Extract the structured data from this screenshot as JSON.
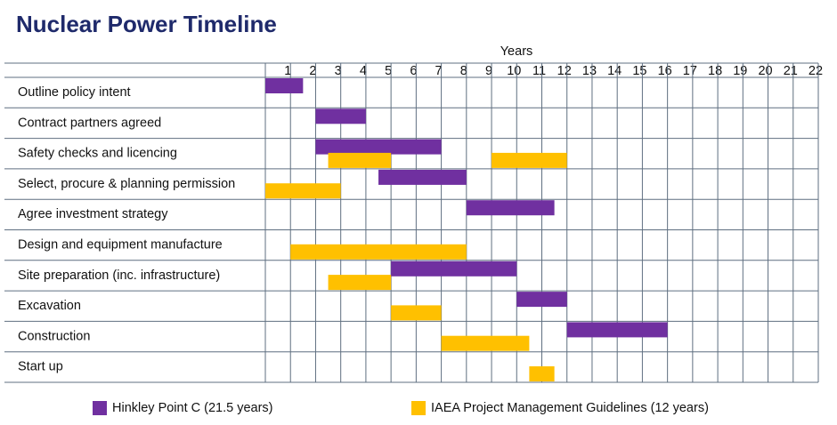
{
  "chart_data": {
    "type": "gantt",
    "title": "Nuclear Power Timeline",
    "x_label": "Years",
    "categories": [
      "Outline policy intent",
      "Contract partners agreed",
      "Safety checks and licencing",
      "Select, procure & planning permission",
      "Agree investment strategy",
      "Design and equipment manufacture",
      "Site preparation (inc. infrastructure)",
      "Excavation",
      "Construction",
      "Start up"
    ],
    "series": [
      {
        "name": "Hinkley Point C (21.5 years)",
        "color": "#7030a0",
        "start": [
          0,
          2,
          2,
          4.5,
          8,
          null,
          5,
          10,
          12,
          null
        ],
        "end": [
          1.5,
          4,
          7,
          8,
          11.5,
          null,
          10,
          12,
          16,
          null
        ]
      },
      {
        "name": "IAEA Project Management Guidelines (12 years)",
        "color": "#ffc000",
        "start": [
          null,
          null,
          2.5,
          0,
          null,
          1,
          2.5,
          5,
          7,
          10.5
        ],
        "end": [
          null,
          null,
          5,
          3,
          null,
          8,
          5,
          7,
          10.5,
          11.5
        ]
      },
      {
        "name": null,
        "color": "#ffc000",
        "start": [
          null,
          null,
          9,
          null,
          null,
          null,
          null,
          null,
          null,
          null
        ],
        "end": [
          null,
          null,
          12,
          null,
          null,
          null,
          null,
          null,
          null,
          null
        ]
      }
    ],
    "xlim": [
      0,
      22
    ],
    "xticks": [
      1,
      2,
      3,
      4,
      5,
      6,
      7,
      8,
      9,
      10,
      11,
      12,
      13,
      14,
      15,
      16,
      17,
      18,
      19,
      20,
      21,
      22
    ],
    "grid": true
  }
}
